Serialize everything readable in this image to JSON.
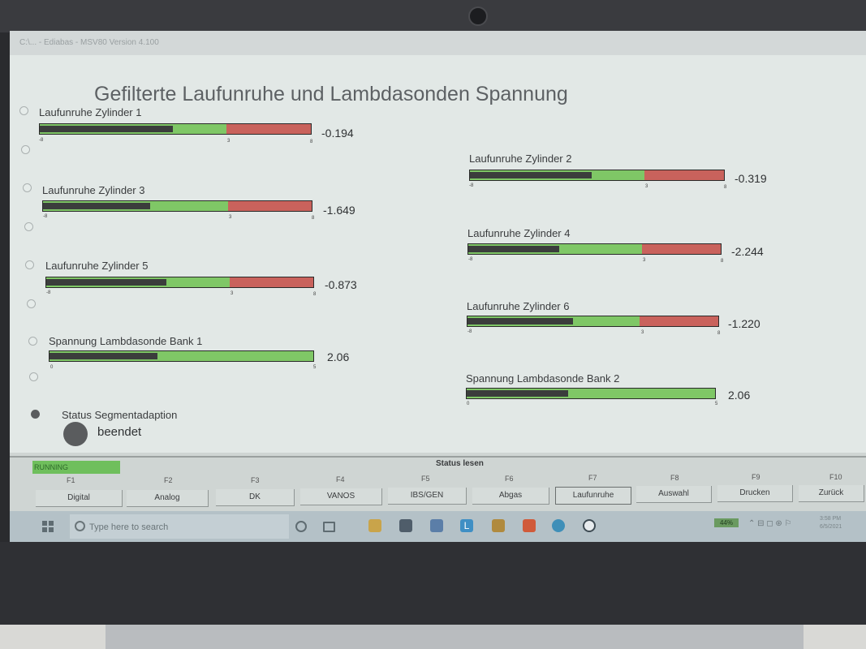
{
  "window": {
    "title": "C:\\... - Ediabas - MSV80 Version 4.100"
  },
  "page": {
    "title": "Gefilterte Laufunruhe und Lambdasonden Spannung"
  },
  "gauges": [
    {
      "label": "Laufunruhe Zylinder 1",
      "value": "-0.194",
      "level": 0.49,
      "min": "-8",
      "mid": "3",
      "max": "8",
      "min_num": -8,
      "mid_num": 3,
      "max_num": 8
    },
    {
      "label": "Laufunruhe Zylinder 2",
      "value": "-0.319",
      "level": 0.48,
      "min": "-8",
      "mid": "3",
      "max": "8",
      "min_num": -8,
      "mid_num": 3,
      "max_num": 8
    },
    {
      "label": "Laufunruhe Zylinder 3",
      "value": "-1.649",
      "level": 0.4,
      "min": "-8",
      "mid": "3",
      "max": "8",
      "min_num": -8,
      "mid_num": 3,
      "max_num": 8
    },
    {
      "label": "Laufunruhe Zylinder 4",
      "value": "-2.244",
      "level": 0.36,
      "min": "-8",
      "mid": "3",
      "max": "8",
      "min_num": -8,
      "mid_num": 3,
      "max_num": 8
    },
    {
      "label": "Laufunruhe Zylinder 5",
      "value": "-0.873",
      "level": 0.45,
      "min": "-8",
      "mid": "3",
      "max": "8",
      "min_num": -8,
      "mid_num": 3,
      "max_num": 8
    },
    {
      "label": "Laufunruhe Zylinder 6",
      "value": "-1.220",
      "level": 0.42,
      "min": "-8",
      "mid": "3",
      "max": "8",
      "min_num": -8,
      "mid_num": 3,
      "max_num": 8
    },
    {
      "label": "Spannung Lambdasonde Bank 1",
      "value": "2.06",
      "level": 0.41,
      "min": "0",
      "max": "5",
      "min_num": 0,
      "max_num": 5
    },
    {
      "label": "Spannung Lambdasonde Bank 2",
      "value": "2.06",
      "level": 0.41,
      "min": "0",
      "max": "5",
      "min_num": 0,
      "max_num": 5
    }
  ],
  "status": {
    "label": "Status Segmentadaption",
    "value": "beendet"
  },
  "statusbar": {
    "running": "RUNNING",
    "group_label": "Status lesen"
  },
  "fkeys": [
    {
      "code": "F1",
      "label": "Digital"
    },
    {
      "code": "F2",
      "label": "Analog"
    },
    {
      "code": "F3",
      "label": "DK"
    },
    {
      "code": "F4",
      "label": "VANOS"
    },
    {
      "code": "F5",
      "label": "IBS/GEN"
    },
    {
      "code": "F6",
      "label": "Abgas"
    },
    {
      "code": "F7",
      "label": "Laufunruhe"
    },
    {
      "code": "F8",
      "label": "Auswahl"
    },
    {
      "code": "F9",
      "label": "Drucken"
    },
    {
      "code": "F10",
      "label": "Zurück"
    }
  ],
  "taskbar": {
    "search_placeholder": "Type here to search",
    "battery": "44%",
    "clock_time": "3:58 PM",
    "clock_date": "6/5/2021",
    "icons": [
      "cortana-icon",
      "task-view-icon",
      "file-explorer-icon",
      "store-icon",
      "mail-icon",
      "l-app-icon",
      "photos-icon",
      "office-icon",
      "edge-icon",
      "bmw-icon"
    ]
  },
  "colors": {
    "bar_green": "#7fc766",
    "bar_red": "#c9625c",
    "bar_fill": "#3b3d3c",
    "led": "#5a5c5e"
  }
}
